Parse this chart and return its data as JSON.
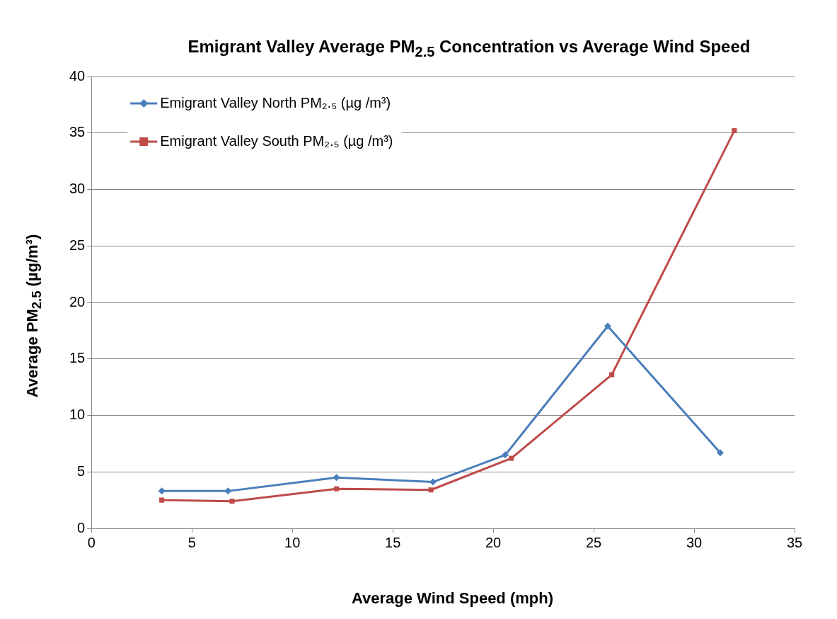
{
  "chart_data": {
    "type": "line",
    "title": "Emigrant Valley Average PM$_{2.5}$ Concentration vs Average Wind Speed",
    "xlabel": "Average Wind Speed (mph)",
    "ylabel": "Average PM$_{2.5}$ (µg/m³)",
    "xlim": [
      0,
      35
    ],
    "xticks": [
      0,
      5,
      10,
      15,
      20,
      25,
      30,
      35
    ],
    "ylim": [
      0,
      40
    ],
    "yticks": [
      0,
      5,
      10,
      15,
      20,
      25,
      30,
      35,
      40
    ],
    "grid": "y",
    "legend": "top left",
    "line_style": "solid",
    "series": [
      {
        "name": "Emigrant Valley North PM₂.₅ (µg /m³)",
        "color": "#4a7ebb",
        "marker": "diamond",
        "x": [
          3.5,
          6.8,
          12.2,
          17.0,
          20.6,
          25.7,
          31.3
        ],
        "values": [
          3.3,
          3.3,
          4.5,
          4.1,
          6.5,
          17.9,
          6.7
        ]
      },
      {
        "name": "Emigrant Valley South PM₂.₅ (µg /m³)",
        "color": "#be4b48",
        "marker": "square",
        "x": [
          3.5,
          7.0,
          12.2,
          16.9,
          20.9,
          25.9,
          32.0
        ],
        "values": [
          2.5,
          2.4,
          3.5,
          3.4,
          6.2,
          13.6,
          35.2
        ]
      }
    ]
  }
}
